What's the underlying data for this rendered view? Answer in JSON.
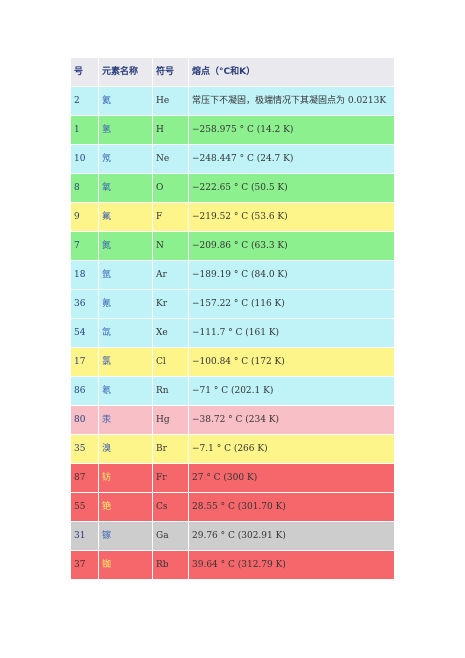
{
  "table": {
    "headers": {
      "number": "号",
      "name": "元素名称",
      "symbol": "符号",
      "melting": "熔点（°C和K）"
    },
    "rows": [
      {
        "number": "2",
        "name": "氦",
        "symbol": "He",
        "melting": "常压下不凝固，极端情况下其凝固点为 0.0213K",
        "color": "cyan"
      },
      {
        "number": "1",
        "name": "氢",
        "symbol": "H",
        "melting": "−258.975 ° C (14.2 K)",
        "color": "green"
      },
      {
        "number": "10",
        "name": "氖",
        "symbol": "Ne",
        "melting": "−248.447 ° C (24.7 K)",
        "color": "cyan"
      },
      {
        "number": "8",
        "name": "氧",
        "symbol": "O",
        "melting": "−222.65 ° C (50.5 K)",
        "color": "green"
      },
      {
        "number": "9",
        "name": "氟",
        "symbol": "F",
        "melting": "−219.52 ° C (53.6 K)",
        "color": "yellow"
      },
      {
        "number": "7",
        "name": "氮",
        "symbol": "N",
        "melting": "−209.86 ° C (63.3 K)",
        "color": "green"
      },
      {
        "number": "18",
        "name": "氩",
        "symbol": "Ar",
        "melting": "−189.19 ° C (84.0 K)",
        "color": "cyan"
      },
      {
        "number": "36",
        "name": "氪",
        "symbol": "Kr",
        "melting": "−157.22 ° C (116 K)",
        "color": "cyan"
      },
      {
        "number": "54",
        "name": "氙",
        "symbol": "Xe",
        "melting": "−111.7 ° C (161 K)",
        "color": "cyan"
      },
      {
        "number": "17",
        "name": "氯",
        "symbol": "Cl",
        "melting": "−100.84 ° C (172 K)",
        "color": "yellow"
      },
      {
        "number": "86",
        "name": "氡",
        "symbol": "Rn",
        "melting": "−71 ° C (202.1 K)",
        "color": "cyan"
      },
      {
        "number": "80",
        "name": "汞",
        "symbol": "Hg",
        "melting": "−38.72 ° C (234 K)",
        "color": "pink"
      },
      {
        "number": "35",
        "name": "溴",
        "symbol": "Br",
        "melting": "−7.1 ° C (266 K)",
        "color": "yellow"
      },
      {
        "number": "87",
        "name": "钫",
        "symbol": "Fr",
        "melting": "27 ° C (300 K)",
        "color": "red"
      },
      {
        "number": "55",
        "name": "铯",
        "symbol": "Cs",
        "melting": "28.55 ° C (301.70 K)",
        "color": "red"
      },
      {
        "number": "31",
        "name": "镓",
        "symbol": "Ga",
        "melting": "29.76 ° C (302.91 K)",
        "color": "grey"
      },
      {
        "number": "37",
        "name": "铷",
        "symbol": "Rb",
        "melting": "39.64 ° C (312.79 K)",
        "color": "red"
      }
    ]
  }
}
